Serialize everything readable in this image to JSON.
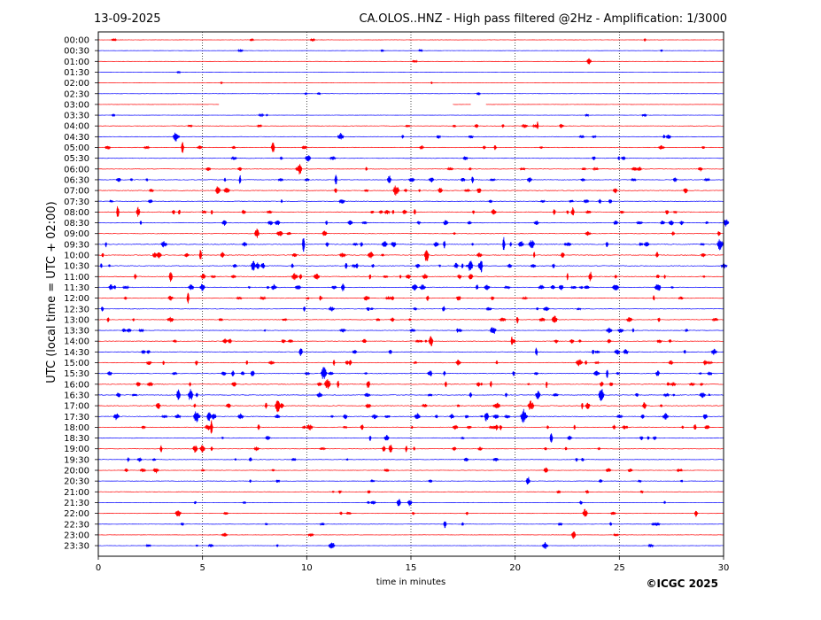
{
  "header": {
    "date": "13-09-2025",
    "title": "CA.OLOS..HNZ - High pass filtered @2Hz - Amplification: 1/3000"
  },
  "footer": {
    "copyright": "©ICGC 2025"
  },
  "chart_data": {
    "type": "line",
    "title": "CA.OLOS..HNZ - High pass filtered @2Hz - Amplification: 1/3000",
    "xlabel": "time in minutes",
    "ylabel": "UTC (local time = UTC + 02:00)",
    "xlim": [
      0,
      30
    ],
    "x_ticks": [
      "0",
      "5",
      "10",
      "15",
      "20",
      "25",
      "30"
    ],
    "x_tick_values": [
      0,
      5,
      10,
      15,
      20,
      25,
      30
    ],
    "grid": "vertical dotted lines at 5-minute ticks",
    "series_colors": [
      "#ff0000",
      "#0000ff"
    ],
    "row_labels": [
      "00:00",
      "00:30",
      "01:00",
      "01:30",
      "02:00",
      "02:30",
      "03:00",
      "03:30",
      "04:00",
      "04:30",
      "05:00",
      "05:30",
      "06:00",
      "06:30",
      "07:00",
      "07:30",
      "08:00",
      "08:30",
      "09:00",
      "09:30",
      "10:00",
      "10:30",
      "11:00",
      "11:30",
      "12:00",
      "12:30",
      "13:00",
      "13:30",
      "14:00",
      "14:30",
      "15:00",
      "15:30",
      "16:00",
      "16:30",
      "17:00",
      "17:30",
      "18:00",
      "18:30",
      "19:00",
      "19:30",
      "20:00",
      "20:30",
      "21:00",
      "21:30",
      "22:00",
      "22:30",
      "23:00",
      "23:30"
    ],
    "row_activity": [
      0.1,
      0.1,
      0.05,
      0.05,
      0.05,
      0.1,
      0.15,
      0.15,
      0.35,
      0.35,
      0.5,
      0.45,
      0.45,
      0.55,
      0.6,
      0.55,
      0.7,
      0.6,
      0.6,
      0.75,
      0.8,
      0.75,
      0.8,
      0.7,
      0.5,
      0.45,
      0.5,
      0.4,
      0.55,
      0.65,
      0.65,
      0.7,
      0.65,
      0.7,
      0.8,
      0.75,
      0.7,
      0.6,
      0.4,
      0.4,
      0.35,
      0.3,
      0.3,
      0.25,
      0.25,
      0.25,
      0.25,
      0.2
    ],
    "gaps_minutes": [
      {
        "row": "03:00",
        "from": 5.8,
        "to": 17.0
      },
      {
        "row": "03:00",
        "from": 17.9,
        "to": 18.6
      }
    ]
  }
}
